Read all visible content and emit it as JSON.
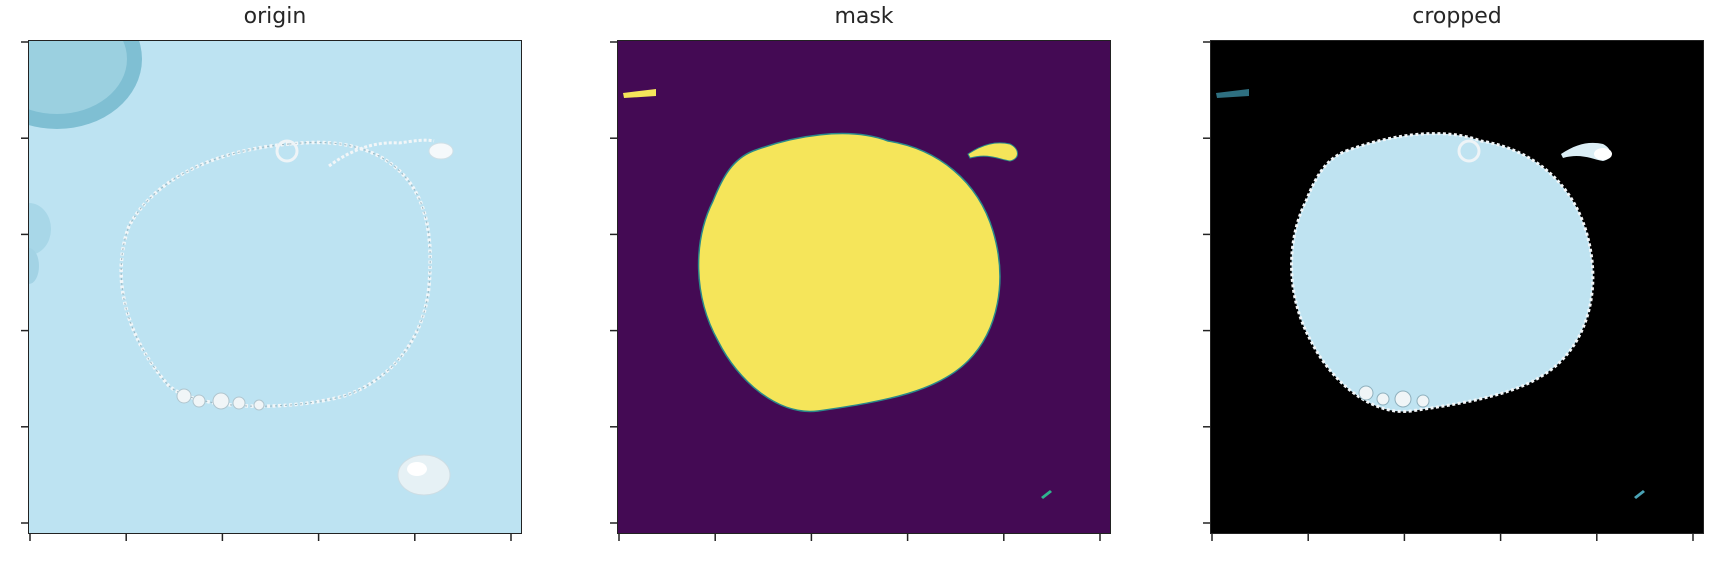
{
  "panels": [
    {
      "title": "origin"
    },
    {
      "title": "mask"
    },
    {
      "title": "cropped"
    }
  ],
  "colors": {
    "origin_background": "#bde3f2",
    "mask_background": "#440a54",
    "mask_foreground": "#f5e55a",
    "mask_edge": "#2a8a8a",
    "cropped_background": "#000000",
    "cropped_region": "#bfe3f1",
    "chain": "#f2f6f8"
  }
}
